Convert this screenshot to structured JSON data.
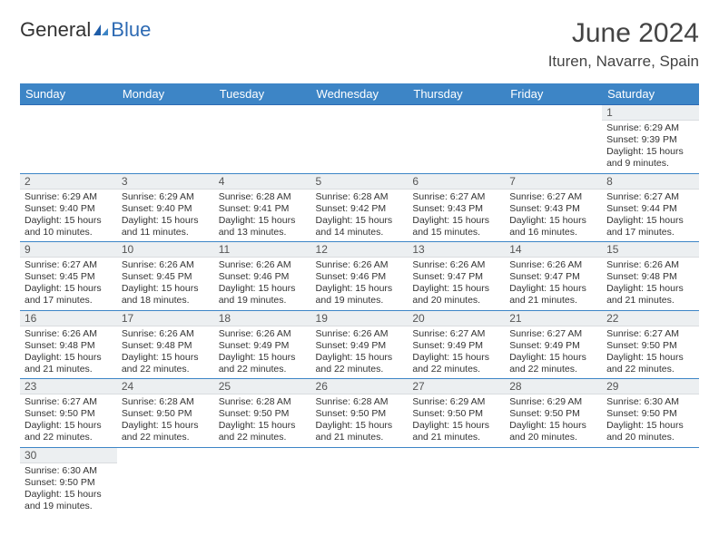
{
  "logo": {
    "part1": "General",
    "part2": "Blue"
  },
  "title": "June 2024",
  "location": "Ituren, Navarre, Spain",
  "colors": {
    "header_bg": "#3d85c6",
    "header_text": "#ffffff",
    "daynum_bg": "#eceff1",
    "border": "#3d85c6",
    "logo_blue": "#2d6ab3",
    "text": "#333333"
  },
  "weekdays": [
    "Sunday",
    "Monday",
    "Tuesday",
    "Wednesday",
    "Thursday",
    "Friday",
    "Saturday"
  ],
  "weeks": [
    [
      null,
      null,
      null,
      null,
      null,
      null,
      {
        "n": "1",
        "sr": "Sunrise: 6:29 AM",
        "ss": "Sunset: 9:39 PM",
        "dl1": "Daylight: 15 hours",
        "dl2": "and 9 minutes."
      }
    ],
    [
      {
        "n": "2",
        "sr": "Sunrise: 6:29 AM",
        "ss": "Sunset: 9:40 PM",
        "dl1": "Daylight: 15 hours",
        "dl2": "and 10 minutes."
      },
      {
        "n": "3",
        "sr": "Sunrise: 6:29 AM",
        "ss": "Sunset: 9:40 PM",
        "dl1": "Daylight: 15 hours",
        "dl2": "and 11 minutes."
      },
      {
        "n": "4",
        "sr": "Sunrise: 6:28 AM",
        "ss": "Sunset: 9:41 PM",
        "dl1": "Daylight: 15 hours",
        "dl2": "and 13 minutes."
      },
      {
        "n": "5",
        "sr": "Sunrise: 6:28 AM",
        "ss": "Sunset: 9:42 PM",
        "dl1": "Daylight: 15 hours",
        "dl2": "and 14 minutes."
      },
      {
        "n": "6",
        "sr": "Sunrise: 6:27 AM",
        "ss": "Sunset: 9:43 PM",
        "dl1": "Daylight: 15 hours",
        "dl2": "and 15 minutes."
      },
      {
        "n": "7",
        "sr": "Sunrise: 6:27 AM",
        "ss": "Sunset: 9:43 PM",
        "dl1": "Daylight: 15 hours",
        "dl2": "and 16 minutes."
      },
      {
        "n": "8",
        "sr": "Sunrise: 6:27 AM",
        "ss": "Sunset: 9:44 PM",
        "dl1": "Daylight: 15 hours",
        "dl2": "and 17 minutes."
      }
    ],
    [
      {
        "n": "9",
        "sr": "Sunrise: 6:27 AM",
        "ss": "Sunset: 9:45 PM",
        "dl1": "Daylight: 15 hours",
        "dl2": "and 17 minutes."
      },
      {
        "n": "10",
        "sr": "Sunrise: 6:26 AM",
        "ss": "Sunset: 9:45 PM",
        "dl1": "Daylight: 15 hours",
        "dl2": "and 18 minutes."
      },
      {
        "n": "11",
        "sr": "Sunrise: 6:26 AM",
        "ss": "Sunset: 9:46 PM",
        "dl1": "Daylight: 15 hours",
        "dl2": "and 19 minutes."
      },
      {
        "n": "12",
        "sr": "Sunrise: 6:26 AM",
        "ss": "Sunset: 9:46 PM",
        "dl1": "Daylight: 15 hours",
        "dl2": "and 19 minutes."
      },
      {
        "n": "13",
        "sr": "Sunrise: 6:26 AM",
        "ss": "Sunset: 9:47 PM",
        "dl1": "Daylight: 15 hours",
        "dl2": "and 20 minutes."
      },
      {
        "n": "14",
        "sr": "Sunrise: 6:26 AM",
        "ss": "Sunset: 9:47 PM",
        "dl1": "Daylight: 15 hours",
        "dl2": "and 21 minutes."
      },
      {
        "n": "15",
        "sr": "Sunrise: 6:26 AM",
        "ss": "Sunset: 9:48 PM",
        "dl1": "Daylight: 15 hours",
        "dl2": "and 21 minutes."
      }
    ],
    [
      {
        "n": "16",
        "sr": "Sunrise: 6:26 AM",
        "ss": "Sunset: 9:48 PM",
        "dl1": "Daylight: 15 hours",
        "dl2": "and 21 minutes."
      },
      {
        "n": "17",
        "sr": "Sunrise: 6:26 AM",
        "ss": "Sunset: 9:48 PM",
        "dl1": "Daylight: 15 hours",
        "dl2": "and 22 minutes."
      },
      {
        "n": "18",
        "sr": "Sunrise: 6:26 AM",
        "ss": "Sunset: 9:49 PM",
        "dl1": "Daylight: 15 hours",
        "dl2": "and 22 minutes."
      },
      {
        "n": "19",
        "sr": "Sunrise: 6:26 AM",
        "ss": "Sunset: 9:49 PM",
        "dl1": "Daylight: 15 hours",
        "dl2": "and 22 minutes."
      },
      {
        "n": "20",
        "sr": "Sunrise: 6:27 AM",
        "ss": "Sunset: 9:49 PM",
        "dl1": "Daylight: 15 hours",
        "dl2": "and 22 minutes."
      },
      {
        "n": "21",
        "sr": "Sunrise: 6:27 AM",
        "ss": "Sunset: 9:49 PM",
        "dl1": "Daylight: 15 hours",
        "dl2": "and 22 minutes."
      },
      {
        "n": "22",
        "sr": "Sunrise: 6:27 AM",
        "ss": "Sunset: 9:50 PM",
        "dl1": "Daylight: 15 hours",
        "dl2": "and 22 minutes."
      }
    ],
    [
      {
        "n": "23",
        "sr": "Sunrise: 6:27 AM",
        "ss": "Sunset: 9:50 PM",
        "dl1": "Daylight: 15 hours",
        "dl2": "and 22 minutes."
      },
      {
        "n": "24",
        "sr": "Sunrise: 6:28 AM",
        "ss": "Sunset: 9:50 PM",
        "dl1": "Daylight: 15 hours",
        "dl2": "and 22 minutes."
      },
      {
        "n": "25",
        "sr": "Sunrise: 6:28 AM",
        "ss": "Sunset: 9:50 PM",
        "dl1": "Daylight: 15 hours",
        "dl2": "and 22 minutes."
      },
      {
        "n": "26",
        "sr": "Sunrise: 6:28 AM",
        "ss": "Sunset: 9:50 PM",
        "dl1": "Daylight: 15 hours",
        "dl2": "and 21 minutes."
      },
      {
        "n": "27",
        "sr": "Sunrise: 6:29 AM",
        "ss": "Sunset: 9:50 PM",
        "dl1": "Daylight: 15 hours",
        "dl2": "and 21 minutes."
      },
      {
        "n": "28",
        "sr": "Sunrise: 6:29 AM",
        "ss": "Sunset: 9:50 PM",
        "dl1": "Daylight: 15 hours",
        "dl2": "and 20 minutes."
      },
      {
        "n": "29",
        "sr": "Sunrise: 6:30 AM",
        "ss": "Sunset: 9:50 PM",
        "dl1": "Daylight: 15 hours",
        "dl2": "and 20 minutes."
      }
    ],
    [
      {
        "n": "30",
        "sr": "Sunrise: 6:30 AM",
        "ss": "Sunset: 9:50 PM",
        "dl1": "Daylight: 15 hours",
        "dl2": "and 19 minutes."
      },
      null,
      null,
      null,
      null,
      null,
      null
    ]
  ]
}
